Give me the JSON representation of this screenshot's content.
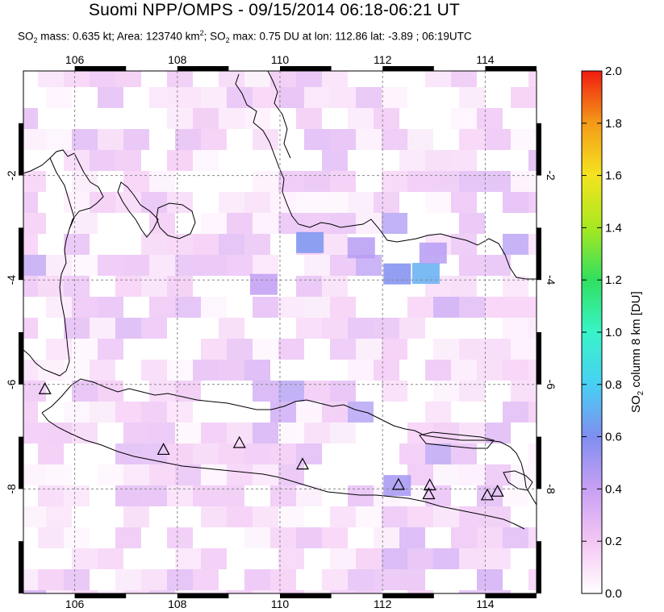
{
  "title": "Suomi NPP/OMPS - 09/15/2014 06:18-06:21 UT",
  "subtitle": {
    "so2_label": "SO",
    "so2_sub": "2",
    "mass_text": " mass: 0.635 kt; Area: 123740 km",
    "area_sup": "2",
    "max_text": "; SO",
    "max_sub": "2",
    "rest_text": " max: 0.75 DU at lon: 112.86 lat: -3.89 ; 06:19UTC"
  },
  "map": {
    "lon_range": [
      105,
      115
    ],
    "lat_range": [
      -10,
      0
    ],
    "lon_ticks": [
      106,
      108,
      110,
      112,
      114
    ],
    "lon_tick_labels": [
      "106",
      "108",
      "110",
      "112",
      "114"
    ],
    "lat_ticks": [
      -2,
      -4,
      -6,
      -8
    ],
    "lat_tick_labels": [
      "-2",
      "-4",
      "-6",
      "-8"
    ],
    "grid": true,
    "volcano_icon": "triangle-icon",
    "volcanoes": [
      {
        "lon": 105.42,
        "lat": -6.1
      },
      {
        "lon": 107.73,
        "lat": -7.26
      },
      {
        "lon": 109.21,
        "lat": -7.13
      },
      {
        "lon": 110.44,
        "lat": -7.54
      },
      {
        "lon": 112.31,
        "lat": -7.93
      },
      {
        "lon": 112.92,
        "lat": -7.94
      },
      {
        "lon": 112.9,
        "lat": -8.11
      },
      {
        "lon": 114.04,
        "lat": -8.13
      },
      {
        "lon": 114.24,
        "lat": -8.06
      }
    ]
  },
  "colorbar": {
    "title_main": "SO",
    "title_sub": "2",
    "title_rest": " column 8 km [DU]",
    "ticks": [
      "0.0",
      "0.2",
      "0.4",
      "0.6",
      "0.8",
      "1.0",
      "1.2",
      "1.4",
      "1.6",
      "1.8",
      "2.0"
    ],
    "range": [
      0.0,
      2.0
    ],
    "colors": [
      "#ffffff",
      "#f4c6f4",
      "#c8a0f4",
      "#7f8ef0",
      "#48d0f4",
      "#38f4c8",
      "#30e060",
      "#a8e820",
      "#f4e420",
      "#f49a18",
      "#f01c10"
    ]
  }
}
